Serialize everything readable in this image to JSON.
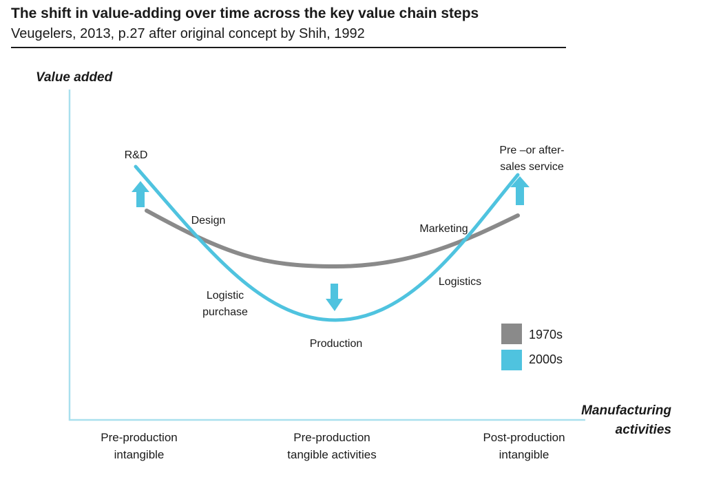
{
  "title": "The shift in value-adding over time across the key value chain steps",
  "subtitle": "Veugelers, 2013, p.27 after original concept by Shih, 1992",
  "axes": {
    "y_label": "Value added",
    "x_label": "Manufacturing\nactivities"
  },
  "stages": [
    "Pre-production\nintangible",
    "Pre-production\ntangible activities",
    "Post-production\nintangible"
  ],
  "labels": {
    "rnd": "R&D",
    "design": "Design",
    "logistic_purchase": "Logistic\npurchase",
    "production": "Production",
    "logistics": "Logistics",
    "marketing": "Marketing",
    "service": "Pre –or after-\nsales service"
  },
  "legend": [
    {
      "label": "1970s",
      "color": "#8a8a8a"
    },
    {
      "label": "2000s",
      "color": "#4fc3df"
    }
  ],
  "colors": {
    "axis": "#a9e0ee",
    "curve_1970s": "#8a8a8a",
    "curve_2000s": "#4fc3df",
    "arrow": "#4fc3df"
  },
  "icons": [
    "arrow-up-icon",
    "arrow-down-icon",
    "arrow-up-icon"
  ]
}
